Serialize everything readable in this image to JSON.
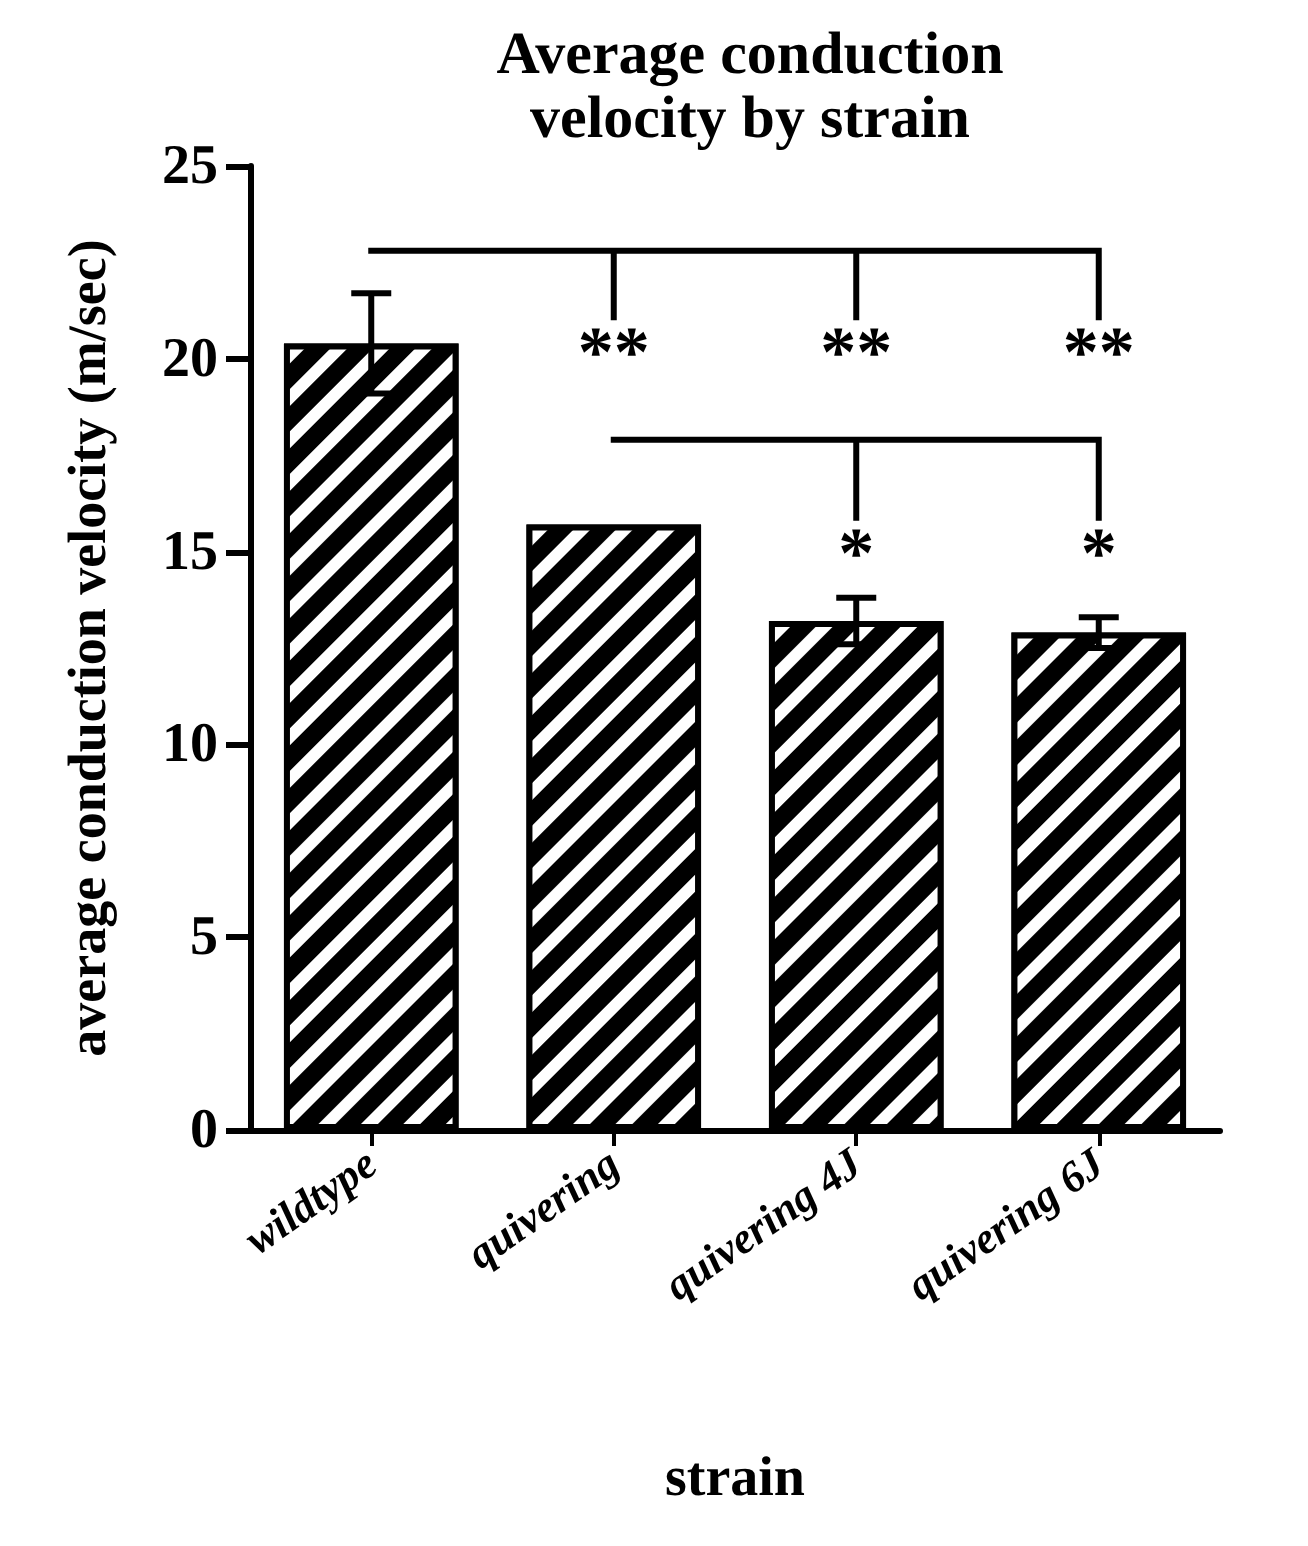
{
  "chart_data": {
    "type": "bar",
    "title": "Average conduction\nvelocity by strain",
    "xlabel": "strain",
    "ylabel": "average conduction velocity (m/sec)",
    "categories": [
      "wildtype",
      "quivering",
      "quivering 4J",
      "quivering 6J"
    ],
    "values": [
      20.4,
      15.7,
      13.2,
      12.9
    ],
    "errors": [
      1.3,
      null,
      0.6,
      0.4
    ],
    "color": "#000000",
    "ylim": [
      0,
      25
    ],
    "yticks": [
      0,
      5,
      10,
      15,
      20,
      25
    ],
    "grid": false,
    "annotations": [
      "**",
      "**",
      "**",
      "*",
      "*"
    ]
  }
}
